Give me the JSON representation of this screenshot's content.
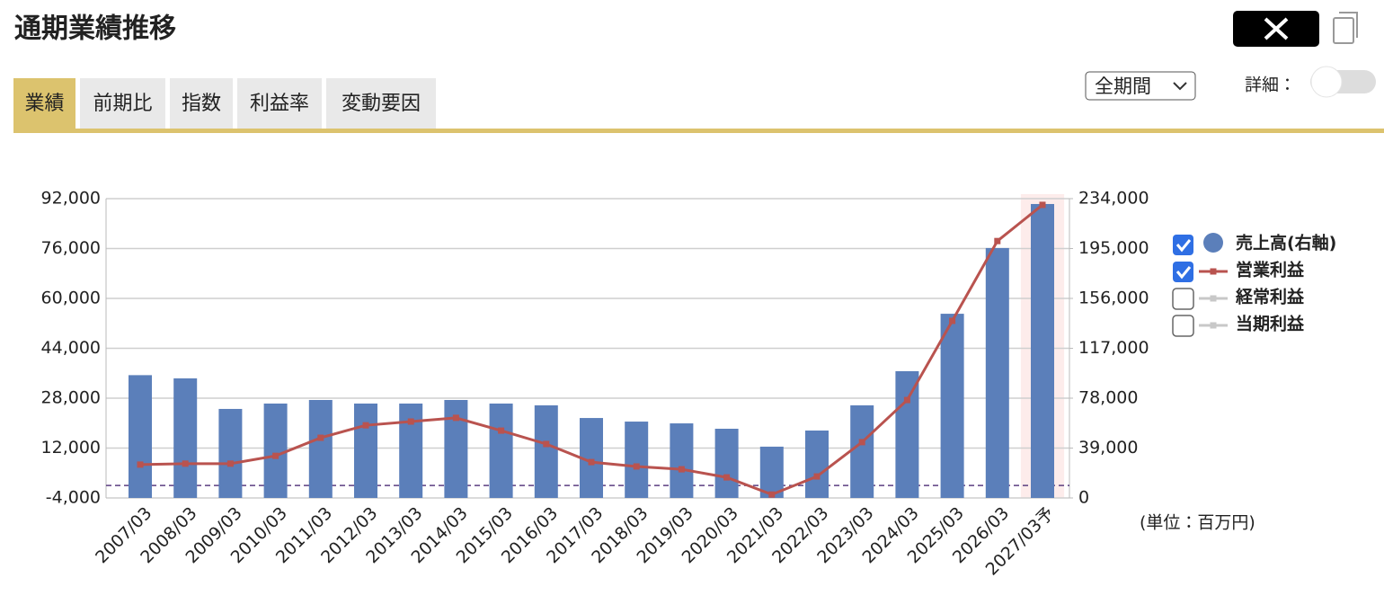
{
  "header": {
    "title": "通期業績推移"
  },
  "tabs": [
    "業績",
    "前期比",
    "指数",
    "利益率",
    "変動要因"
  ],
  "active_tab": 0,
  "period_select": "全期間",
  "detail_label": "詳細：",
  "unit_note": "(単位：百万円)",
  "chart_data": {
    "type": "combo",
    "categories": [
      "2007/03",
      "2008/03",
      "2009/03",
      "2010/03",
      "2011/03",
      "2012/03",
      "2013/03",
      "2014/03",
      "2015/03",
      "2016/03",
      "2017/03",
      "2018/03",
      "2019/03",
      "2020/03",
      "2021/03",
      "2022/03",
      "2023/03",
      "2024/03",
      "2025/03",
      "2026/03",
      "2027/03予"
    ],
    "series": [
      {
        "name": "売上高(右軸)",
        "type": "bar",
        "axis": "y2",
        "color": "#5b7fba",
        "checked": true,
        "values": [
          96000,
          93500,
          69600,
          73800,
          76600,
          73800,
          73800,
          76600,
          73800,
          72400,
          62500,
          59700,
          58300,
          54100,
          40100,
          52700,
          72400,
          99100,
          144000,
          195400,
          229800
        ]
      },
      {
        "name": "営業利益",
        "type": "line",
        "color": "#b9534f",
        "checked": true,
        "values": [
          6700,
          7000,
          7000,
          9500,
          15300,
          19300,
          20500,
          21700,
          17600,
          13300,
          7500,
          6100,
          5200,
          2600,
          -2900,
          2900,
          13900,
          27400,
          52800,
          78400,
          90000
        ]
      },
      {
        "name": "経常利益",
        "type": "line",
        "color": "#c8c8c8",
        "checked": false
      },
      {
        "name": "当期利益",
        "type": "line",
        "color": "#c8c8c8",
        "checked": false
      }
    ],
    "ylim": [
      -4000,
      92000
    ],
    "yticks": [
      {
        "value": -4000,
        "label": "-4,000"
      },
      {
        "value": 12000,
        "label": "12,000"
      },
      {
        "value": 28000,
        "label": "28,000"
      },
      {
        "value": 44000,
        "label": "44,000"
      },
      {
        "value": 60000,
        "label": "60,000"
      },
      {
        "value": 76000,
        "label": "76,000"
      },
      {
        "value": 92000,
        "label": "92,000"
      }
    ],
    "y2lim": [
      0,
      234000
    ],
    "y2ticks": [
      0,
      {
        "value": 39000,
        "label": "39,000"
      },
      {
        "value": 78000,
        "label": "78,000"
      },
      {
        "value": 117000,
        "label": "117,000"
      },
      {
        "value": 156000,
        "label": "156,000"
      },
      {
        "value": 195000,
        "label": "195,000"
      },
      {
        "value": 234000,
        "label": "234,000"
      }
    ],
    "grid": true
  }
}
